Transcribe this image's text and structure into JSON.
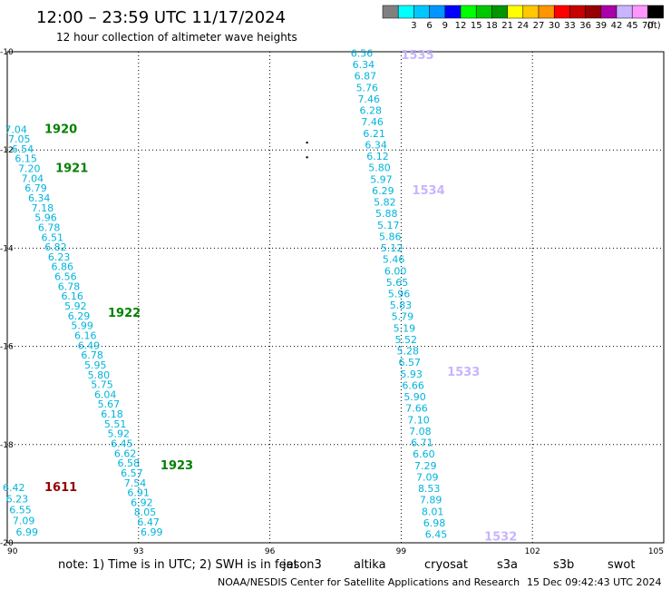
{
  "header": {
    "title": "12:00 – 23:59 UTC 11/17/2024",
    "subtitle": "12 hour collection of altimeter wave heights"
  },
  "legend": {
    "bins": [
      {
        "label": "",
        "color": "#808080"
      },
      {
        "label": "3",
        "color": "#00ffff"
      },
      {
        "label": "6",
        "color": "#00c8ff"
      },
      {
        "label": "9",
        "color": "#0096ff"
      },
      {
        "label": "12",
        "color": "#0000ff"
      },
      {
        "label": "15",
        "color": "#00ff00"
      },
      {
        "label": "18",
        "color": "#00c800"
      },
      {
        "label": "21",
        "color": "#009600"
      },
      {
        "label": "24",
        "color": "#ffff00"
      },
      {
        "label": "27",
        "color": "#ffc800"
      },
      {
        "label": "30",
        "color": "#ff9600"
      },
      {
        "label": "33",
        "color": "#ff0000"
      },
      {
        "label": "36",
        "color": "#c80000"
      },
      {
        "label": "39",
        "color": "#960000"
      },
      {
        "label": "42",
        "color": "#aa00aa"
      },
      {
        "label": "45",
        "color": "#c8b4ff"
      },
      {
        "label": "70",
        "color": "#ff96ff"
      },
      {
        "label": "",
        "color": "#000000"
      }
    ],
    "unit": "(ft)"
  },
  "chart_data": {
    "type": "scatter",
    "xlim": [
      90,
      105
    ],
    "ylim": [
      -20,
      -10
    ],
    "x_ticks": [
      "90",
      "93",
      "96",
      "99",
      "102",
      "105"
    ],
    "y_ticks": [
      "-10",
      "-12",
      "-14",
      "-16",
      "-18",
      "-20"
    ],
    "grid": true,
    "value_color": "#00b4dc",
    "tracks": [
      {
        "start": [
          90.2,
          -11.65
        ],
        "end": [
          93.3,
          -19.85
        ],
        "values": [
          "7.04",
          "7.05",
          "6.54",
          "6.15",
          "7.20",
          "7.04",
          "6.79",
          "6.34",
          "7.18",
          "5.96",
          "6.78",
          "6.51",
          "6.82",
          "6.23",
          "6.86",
          "6.56",
          "6.78",
          "6.16",
          "5.92",
          "6.29",
          "5.99",
          "6.16",
          "6.49",
          "6.78",
          "5.95",
          "5.80",
          "5.75",
          "6.04",
          "5.67",
          "6.18",
          "5.51",
          "5.92",
          "6.45",
          "6.62",
          "6.58",
          "6.57",
          "7.54",
          "6.91",
          "6.92",
          "8.05",
          "6.47",
          "6.99"
        ]
      },
      {
        "start": [
          98.1,
          -10.1
        ],
        "end": [
          99.8,
          -19.9
        ],
        "values": [
          "6.56",
          "6.34",
          "6.87",
          "5.76",
          "7.46",
          "6.28",
          "7.46",
          "6.21",
          "6.34",
          "6.12",
          "5.80",
          "5.97",
          "6.29",
          "5.82",
          "5.88",
          "5.17",
          "5.86",
          "5.12",
          "5.46",
          "6.00",
          "5.65",
          "5.96",
          "5.83",
          "5.79",
          "5.19",
          "5.52",
          "5.28",
          "6.57",
          "5.93",
          "6.66",
          "5.90",
          "7.66",
          "7.10",
          "7.08",
          "6.71",
          "6.60",
          "7.29",
          "7.09",
          "8.53",
          "7.89",
          "8.01",
          "6.98",
          "6.45"
        ]
      },
      {
        "start": [
          90.15,
          -18.95
        ],
        "end": [
          90.45,
          -19.85
        ],
        "values": [
          "6.42",
          "6.23",
          "6.55",
          "7.09",
          "6.99"
        ]
      }
    ],
    "pass_labels": [
      {
        "text": "1920",
        "x": 90.85,
        "y": -11.65,
        "color": "#008200"
      },
      {
        "text": "1921",
        "x": 91.1,
        "y": -12.45,
        "color": "#008200"
      },
      {
        "text": "1922",
        "x": 92.3,
        "y": -15.4,
        "color": "#008200"
      },
      {
        "text": "1923",
        "x": 93.5,
        "y": -18.5,
        "color": "#008200"
      },
      {
        "text": "1535",
        "x": 99.0,
        "y": -10.15,
        "color": "#c8b4ff"
      },
      {
        "text": "1534",
        "x": 99.25,
        "y": -12.9,
        "color": "#c8b4ff"
      },
      {
        "text": "1533",
        "x": 100.05,
        "y": -16.6,
        "color": "#c8b4ff"
      },
      {
        "text": "1532",
        "x": 100.9,
        "y": -19.95,
        "color": "#c8b4ff"
      },
      {
        "text": "1611",
        "x": 90.85,
        "y": -18.95,
        "color": "#960000"
      }
    ],
    "island_points": [
      [
        96.85,
        -11.85
      ],
      [
        96.85,
        -12.15
      ]
    ]
  },
  "footer": {
    "note": "note:  1) Time is in UTC; 2) SWH is in feet",
    "satellites": [
      {
        "name": "jason3",
        "color": "#008200"
      },
      {
        "name": "altika",
        "color": "#ff9600"
      },
      {
        "name": "cryosat",
        "color": "#ff0000"
      },
      {
        "name": "s3a",
        "color": "#960000"
      },
      {
        "name": "s3b",
        "color": "#c8b4ff"
      },
      {
        "name": "swot",
        "color": "#ff96ff"
      }
    ],
    "credit": "NOAA/NESDIS Center for Satellite Applications and Research",
    "timestamp": "15 Dec 09:42:43 UTC 2024"
  }
}
